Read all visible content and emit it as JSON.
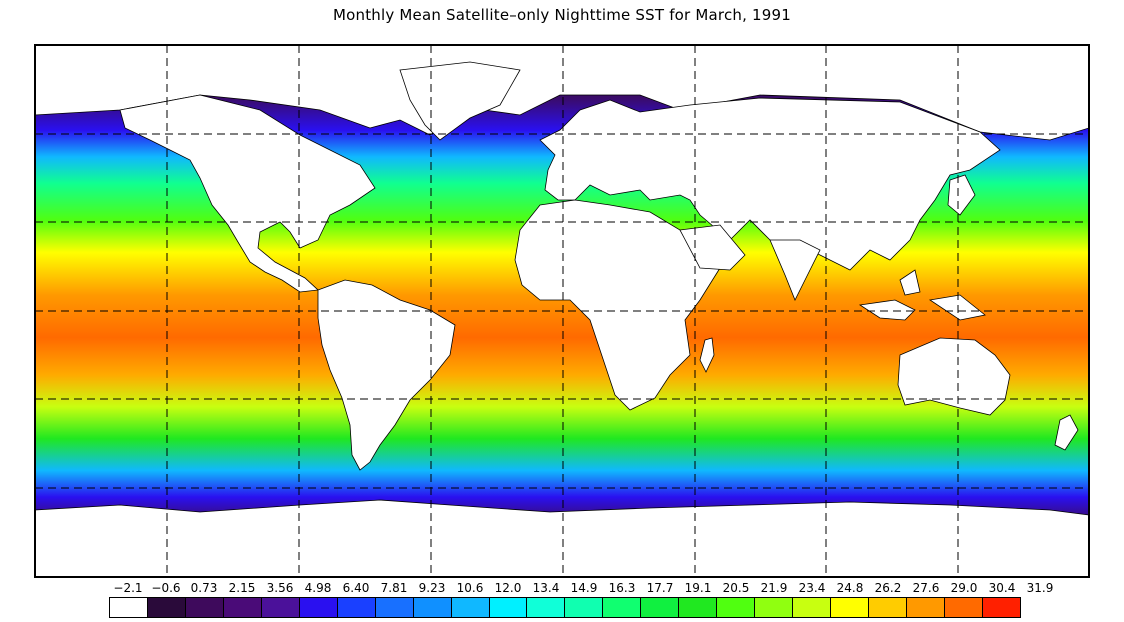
{
  "title": "Monthly Mean Satellite–only Nighttime SST for March, 1991",
  "legend": {
    "labels": [
      "−2.1",
      "−0.6",
      "0.73",
      "2.15",
      "3.56",
      "4.98",
      "6.40",
      "7.81",
      "9.23",
      "10.6",
      "12.0",
      "13.4",
      "14.9",
      "16.3",
      "17.7",
      "19.1",
      "20.5",
      "21.9",
      "23.4",
      "24.8",
      "26.2",
      "27.6",
      "29.0",
      "30.4",
      "31.9"
    ],
    "colors": [
      "#ffffff",
      "#2a0a3a",
      "#3e0a5c",
      "#4a0b78",
      "#4b119a",
      "#2a10f0",
      "#1a40ff",
      "#1870ff",
      "#1090ff",
      "#10b8ff",
      "#00f0ff",
      "#10ffd8",
      "#10ffb0",
      "#10ff70",
      "#10f040",
      "#20e820",
      "#50ff10",
      "#90ff10",
      "#c8ff10",
      "#ffff00",
      "#ffcc00",
      "#ff9900",
      "#ff6a00",
      "#ff2000"
    ]
  },
  "map": {
    "projection": "equirectangular",
    "lon_range": [
      -180,
      180
    ],
    "lat_range": [
      -90,
      90
    ],
    "grid_lines_lon": [
      -135,
      -90,
      -45,
      0,
      45,
      90,
      135
    ],
    "grid_lines_lat": [
      -60,
      -30,
      0,
      30,
      60
    ]
  }
}
